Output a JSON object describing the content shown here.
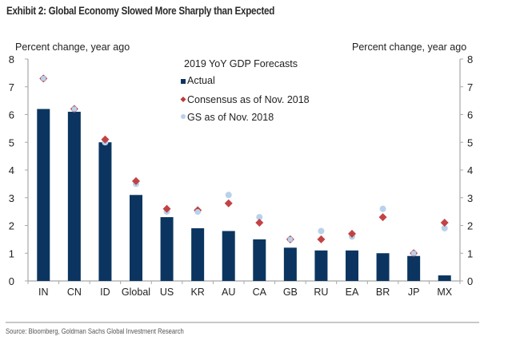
{
  "title": "Exhibit 2: Global Economy Slowed More Sharply than Expected",
  "source": "Source: Bloomberg, Goldman Sachs Global Investment Research",
  "colors": {
    "actual": "#0b3560",
    "consensus": "#c0393b",
    "gs": "#b8d2ea",
    "axis": "#a8a8a8",
    "text": "#222222"
  },
  "chart_data": {
    "type": "bar",
    "title": "2019 YoY GDP Forecasts",
    "xlabel": "",
    "ylabel": "Percent change, year ago",
    "ylabel_right": "Percent change, year ago",
    "ylim": [
      0,
      8
    ],
    "yticks": [
      "0",
      "1",
      "2",
      "3",
      "4",
      "5",
      "6",
      "7",
      "8"
    ],
    "grid": false,
    "legend_position": "top-center",
    "categories": [
      "IN",
      "CN",
      "ID",
      "Global",
      "US",
      "KR",
      "AU",
      "CA",
      "GB",
      "RU",
      "EA",
      "BR",
      "JP",
      "MX"
    ],
    "series": [
      {
        "name": "Actual",
        "kind": "bar",
        "values": [
          6.2,
          6.1,
          5.0,
          3.1,
          2.3,
          1.9,
          1.8,
          1.5,
          1.2,
          1.1,
          1.1,
          1.0,
          0.9,
          0.2
        ]
      },
      {
        "name": "Consensus as of Nov. 2018",
        "kind": "diamond",
        "values": [
          7.3,
          6.2,
          5.1,
          3.6,
          2.6,
          2.55,
          2.8,
          2.1,
          1.5,
          1.5,
          1.7,
          2.3,
          1.0,
          2.1
        ]
      },
      {
        "name": "GS as of Nov. 2018",
        "kind": "circle",
        "values": [
          7.3,
          6.2,
          5.0,
          3.5,
          2.5,
          2.5,
          3.1,
          2.3,
          1.5,
          1.8,
          1.6,
          2.6,
          1.0,
          1.9
        ]
      }
    ]
  }
}
